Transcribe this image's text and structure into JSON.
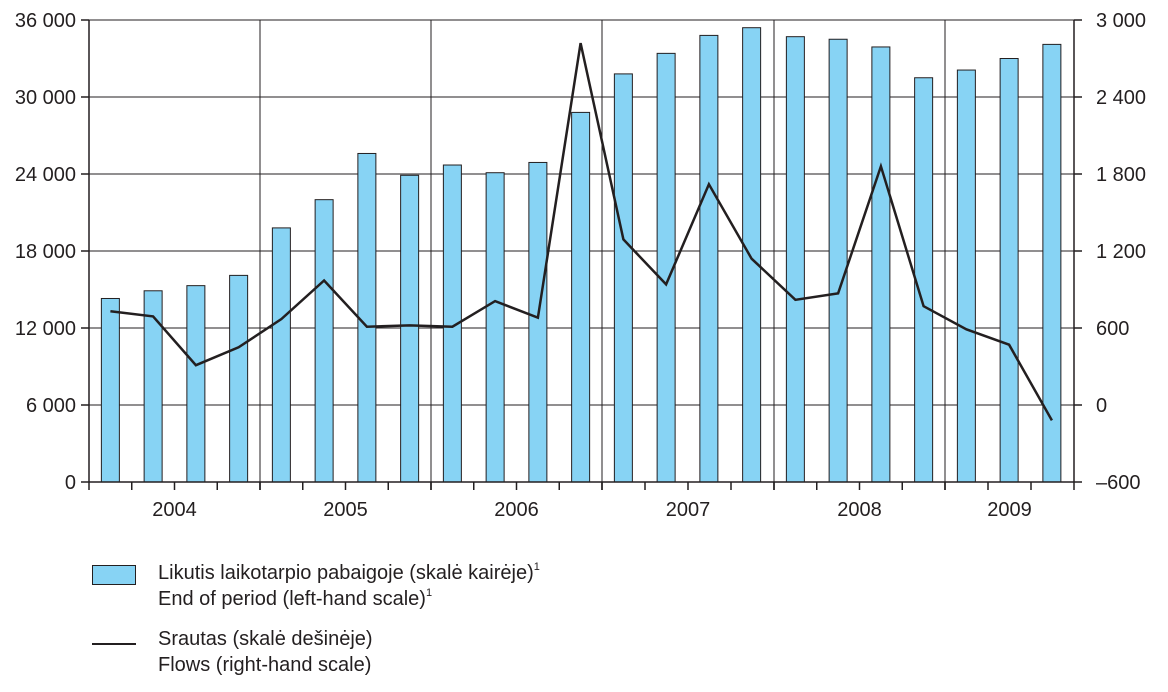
{
  "chart_data": {
    "type": "bar+line",
    "groups": [
      "2004",
      "2005",
      "2006",
      "2007",
      "2008",
      "2009"
    ],
    "quarters_per_group": [
      4,
      4,
      4,
      4,
      4,
      3
    ],
    "left_axis": {
      "ylim": [
        0,
        36000
      ],
      "ticks": [
        "0",
        "6 000",
        "12 000",
        "18 000",
        "24 000",
        "30 000",
        "36 000"
      ],
      "tick_values": [
        0,
        6000,
        12000,
        18000,
        24000,
        30000,
        36000
      ]
    },
    "right_axis": {
      "ylim": [
        -600,
        3000
      ],
      "ticks": [
        "–600",
        "0",
        "600",
        "1 200",
        "1 800",
        "2 400",
        "3 000"
      ],
      "tick_values": [
        -600,
        0,
        600,
        1200,
        1800,
        2400,
        3000
      ]
    },
    "bars": {
      "name": "Likutis laikotarpio pabaigoje (skalė kairėje)",
      "axis": "left",
      "color": "#87d3f4",
      "values": [
        14300,
        14900,
        15300,
        16100,
        19800,
        22000,
        25600,
        23900,
        24700,
        24100,
        24900,
        28800,
        31800,
        33400,
        34800,
        35400,
        34700,
        34500,
        33900,
        31500,
        32100,
        33000,
        34100
      ]
    },
    "line": {
      "name": "Srautas (skalė dešinėje)",
      "axis": "right",
      "color": "#231f20",
      "values": [
        730,
        690,
        310,
        450,
        670,
        970,
        610,
        620,
        610,
        810,
        680,
        2820,
        1290,
        940,
        1720,
        1140,
        820,
        870,
        1860,
        770,
        590,
        470,
        -120
      ]
    },
    "grid": true
  },
  "legend": {
    "bars_lt": "Likutis laikotarpio pabaigoje (skalė kairėje)",
    "bars_en": "End of period (left-hand scale)",
    "footnote_mark": "1",
    "line_lt": "Srautas (skalė dešinėje)",
    "line_en": "Flows (right-hand scale)"
  }
}
